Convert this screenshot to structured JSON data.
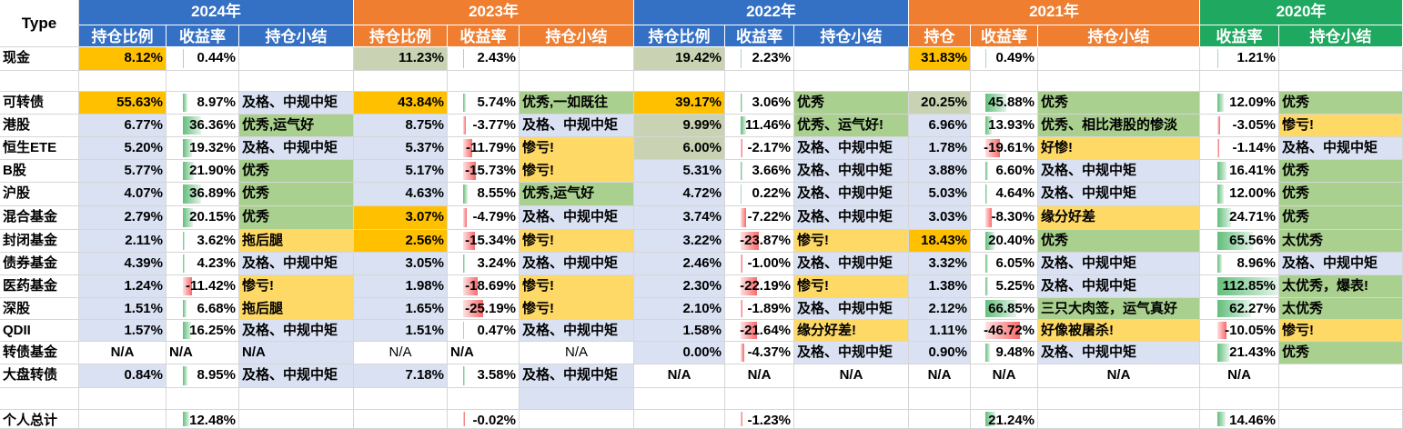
{
  "colors": {
    "blue": "#3471c4",
    "orange": "#ef7e31",
    "green": "#1fa85f",
    "amber": "#ffc000",
    "beige": "#c9d3b4",
    "bad": "#ffd966",
    "good": "#a9d08e",
    "ok": "#d9e1f2"
  },
  "type_label": "Type",
  "years": [
    {
      "label": "2024年",
      "color": "blue",
      "cols": [
        "持仓比例",
        "收益率",
        "持仓小结"
      ]
    },
    {
      "label": "2023年",
      "color": "orange",
      "cols": [
        "持仓比例",
        "收益率",
        "持仓小结"
      ]
    },
    {
      "label": "2022年",
      "color": "blue",
      "cols": [
        "持仓比例",
        "收益率",
        "持仓小结"
      ]
    },
    {
      "label": "2021年",
      "color": "orange",
      "cols": [
        "持仓",
        "收益率",
        "持仓小结"
      ]
    },
    {
      "label": "2020年",
      "color": "green",
      "cols": [
        "收益率",
        "持仓小结"
      ]
    }
  ],
  "rows": [
    {
      "name": "现金",
      "cells": [
        {
          "t": "8.12%",
          "bg": "amber"
        },
        {
          "t": "0.44%",
          "bar": 0.44
        },
        {
          "t": ""
        },
        {
          "t": "11.23%",
          "bg": "beige"
        },
        {
          "t": "2.43%",
          "bar": 2.43
        },
        {
          "t": ""
        },
        {
          "t": "19.42%",
          "bg": "beige"
        },
        {
          "t": "2.23%",
          "bar": 2.23
        },
        {
          "t": ""
        },
        {
          "t": "31.83%",
          "bg": "amber"
        },
        {
          "t": "0.49%",
          "bar": 0.49
        },
        {
          "t": ""
        },
        {
          "t": "1.21%",
          "bar": 1.21
        },
        {
          "t": ""
        }
      ]
    },
    {
      "name": "",
      "cells": []
    },
    {
      "name": "可转债",
      "cells": [
        {
          "t": "55.63%",
          "bg": "amber"
        },
        {
          "t": "8.97%",
          "bar": 8.97
        },
        {
          "t": "及格、中规中矩",
          "bg": "ok"
        },
        {
          "t": "43.84%",
          "bg": "amber"
        },
        {
          "t": "5.74%",
          "bar": 5.74
        },
        {
          "t": "优秀,一如既往",
          "bg": "good"
        },
        {
          "t": "39.17%",
          "bg": "amber"
        },
        {
          "t": "3.06%",
          "bar": 3.06
        },
        {
          "t": "优秀",
          "bg": "good"
        },
        {
          "t": "20.25%",
          "bg": "beige"
        },
        {
          "t": "45.88%",
          "bar": 45.88
        },
        {
          "t": "优秀",
          "bg": "good"
        },
        {
          "t": "12.09%",
          "bar": 12.09
        },
        {
          "t": "优秀",
          "bg": "good"
        }
      ]
    },
    {
      "name": "港股",
      "cells": [
        {
          "t": "6.77%",
          "bg": "ok"
        },
        {
          "t": "36.36%",
          "bar": 36.36
        },
        {
          "t": "优秀,运气好",
          "bg": "good"
        },
        {
          "t": "8.75%",
          "bg": "ok"
        },
        {
          "t": "-3.77%",
          "bar": -3.77
        },
        {
          "t": "及格、中规中矩",
          "bg": "ok"
        },
        {
          "t": "9.99%",
          "bg": "beige"
        },
        {
          "t": "11.46%",
          "bar": 11.46
        },
        {
          "t": "优秀、运气好!",
          "bg": "good"
        },
        {
          "t": "6.96%",
          "bg": "ok"
        },
        {
          "t": "13.93%",
          "bar": 13.93
        },
        {
          "t": "优秀、相比港股的惨淡",
          "bg": "good"
        },
        {
          "t": "-3.05%",
          "bar": -3.05
        },
        {
          "t": "惨亏!",
          "bg": "bad"
        }
      ]
    },
    {
      "name": "恒生ETE",
      "cells": [
        {
          "t": "5.20%",
          "bg": "ok"
        },
        {
          "t": "19.32%",
          "bar": 19.32
        },
        {
          "t": "及格、中规中矩",
          "bg": "ok"
        },
        {
          "t": "5.37%",
          "bg": "ok"
        },
        {
          "t": "-11.79%",
          "bar": -11.79
        },
        {
          "t": "惨亏!",
          "bg": "bad"
        },
        {
          "t": "6.00%",
          "bg": "beige"
        },
        {
          "t": "-2.17%",
          "bar": -2.17
        },
        {
          "t": "及格、中规中矩",
          "bg": "ok"
        },
        {
          "t": "1.78%",
          "bg": "ok"
        },
        {
          "t": "-19.61%",
          "bar": -19.61
        },
        {
          "t": "好惨!",
          "bg": "bad"
        },
        {
          "t": "-1.14%",
          "bar": -1.14
        },
        {
          "t": "及格、中规中矩",
          "bg": "ok"
        }
      ]
    },
    {
      "name": "B股",
      "cells": [
        {
          "t": "5.77%",
          "bg": "ok"
        },
        {
          "t": "21.90%",
          "bar": 21.9
        },
        {
          "t": "优秀",
          "bg": "good"
        },
        {
          "t": "5.17%",
          "bg": "ok"
        },
        {
          "t": "-15.73%",
          "bar": -15.73
        },
        {
          "t": "惨亏!",
          "bg": "bad"
        },
        {
          "t": "5.31%",
          "bg": "ok"
        },
        {
          "t": "3.66%",
          "bar": 3.66
        },
        {
          "t": "及格、中规中矩",
          "bg": "ok"
        },
        {
          "t": "3.88%",
          "bg": "ok"
        },
        {
          "t": "6.60%",
          "bar": 6.6
        },
        {
          "t": "及格、中规中矩",
          "bg": "ok"
        },
        {
          "t": "16.41%",
          "bar": 16.41
        },
        {
          "t": "优秀",
          "bg": "good"
        }
      ]
    },
    {
      "name": "沪股",
      "cells": [
        {
          "t": "4.07%",
          "bg": "ok"
        },
        {
          "t": "36.89%",
          "bar": 36.89
        },
        {
          "t": "优秀",
          "bg": "good"
        },
        {
          "t": "4.63%",
          "bg": "ok"
        },
        {
          "t": "8.55%",
          "bar": 8.55
        },
        {
          "t": "优秀,运气好",
          "bg": "good"
        },
        {
          "t": "4.72%",
          "bg": "ok"
        },
        {
          "t": "0.22%",
          "bar": 0.22
        },
        {
          "t": "及格、中规中矩",
          "bg": "ok"
        },
        {
          "t": "5.03%",
          "bg": "ok"
        },
        {
          "t": "4.64%",
          "bar": 4.64
        },
        {
          "t": "及格、中规中矩",
          "bg": "ok"
        },
        {
          "t": "12.00%",
          "bar": 12.0
        },
        {
          "t": "优秀",
          "bg": "good"
        }
      ]
    },
    {
      "name": "混合基金",
      "cells": [
        {
          "t": "2.79%",
          "bg": "ok"
        },
        {
          "t": "20.15%",
          "bar": 20.15
        },
        {
          "t": "优秀",
          "bg": "good"
        },
        {
          "t": "3.07%",
          "bg": "amber"
        },
        {
          "t": "-4.79%",
          "bar": -4.79
        },
        {
          "t": "及格、中规中矩",
          "bg": "ok"
        },
        {
          "t": "3.74%",
          "bg": "ok"
        },
        {
          "t": "-7.22%",
          "bar": -7.22
        },
        {
          "t": "及格、中规中矩",
          "bg": "ok"
        },
        {
          "t": "3.03%",
          "bg": "ok"
        },
        {
          "t": "-8.30%",
          "bar": -8.3
        },
        {
          "t": "缘分好差",
          "bg": "bad"
        },
        {
          "t": "24.71%",
          "bar": 24.71
        },
        {
          "t": "优秀",
          "bg": "good"
        }
      ]
    },
    {
      "name": "封闭基金",
      "cells": [
        {
          "t": "2.11%",
          "bg": "ok"
        },
        {
          "t": "3.62%",
          "bar": 3.62
        },
        {
          "t": "拖后腿",
          "bg": "bad"
        },
        {
          "t": "2.56%",
          "bg": "amber"
        },
        {
          "t": "-15.34%",
          "bar": -15.34
        },
        {
          "t": "惨亏!",
          "bg": "bad"
        },
        {
          "t": "3.22%",
          "bg": "ok"
        },
        {
          "t": "-23.87%",
          "bar": -23.87
        },
        {
          "t": "惨亏!",
          "bg": "bad"
        },
        {
          "t": "18.43%",
          "bg": "amber"
        },
        {
          "t": "20.40%",
          "bar": 20.4
        },
        {
          "t": "优秀",
          "bg": "good"
        },
        {
          "t": "65.56%",
          "bar": 65.56
        },
        {
          "t": "太优秀",
          "bg": "good"
        }
      ]
    },
    {
      "name": "债券基金",
      "cells": [
        {
          "t": "4.39%",
          "bg": "ok"
        },
        {
          "t": "4.23%",
          "bar": 4.23
        },
        {
          "t": "及格、中规中矩",
          "bg": "ok"
        },
        {
          "t": "3.05%",
          "bg": "ok"
        },
        {
          "t": "3.24%",
          "bar": 3.24
        },
        {
          "t": "及格、中规中矩",
          "bg": "ok"
        },
        {
          "t": "2.46%",
          "bg": "ok"
        },
        {
          "t": "-1.00%",
          "bar": -1.0
        },
        {
          "t": "及格、中规中矩",
          "bg": "ok"
        },
        {
          "t": "3.32%",
          "bg": "ok"
        },
        {
          "t": "6.05%",
          "bar": 6.05
        },
        {
          "t": "及格、中规中矩",
          "bg": "ok"
        },
        {
          "t": "8.96%",
          "bar": 8.96
        },
        {
          "t": "及格、中规中矩",
          "bg": "ok"
        }
      ]
    },
    {
      "name": "医药基金",
      "cells": [
        {
          "t": "1.24%",
          "bg": "ok"
        },
        {
          "t": "-11.42%",
          "bar": -11.42
        },
        {
          "t": "惨亏!",
          "bg": "bad"
        },
        {
          "t": "1.98%",
          "bg": "ok"
        },
        {
          "t": "-18.69%",
          "bar": -18.69
        },
        {
          "t": "惨亏!",
          "bg": "bad"
        },
        {
          "t": "2.30%",
          "bg": "ok"
        },
        {
          "t": "-22.19%",
          "bar": -22.19
        },
        {
          "t": "惨亏!",
          "bg": "bad"
        },
        {
          "t": "1.38%",
          "bg": "ok"
        },
        {
          "t": "5.25%",
          "bar": 5.25
        },
        {
          "t": "及格、中规中矩",
          "bg": "ok"
        },
        {
          "t": "112.85%",
          "bar": 112.85
        },
        {
          "t": "太优秀，爆表!",
          "bg": "good"
        }
      ]
    },
    {
      "name": "深股",
      "cells": [
        {
          "t": "1.51%",
          "bg": "ok"
        },
        {
          "t": "6.68%",
          "bar": 6.68
        },
        {
          "t": "拖后腿",
          "bg": "bad"
        },
        {
          "t": "1.65%",
          "bg": "ok"
        },
        {
          "t": "-25.19%",
          "bar": -25.19
        },
        {
          "t": "惨亏!",
          "bg": "bad"
        },
        {
          "t": "2.10%",
          "bg": "ok"
        },
        {
          "t": "-1.89%",
          "bar": -1.89
        },
        {
          "t": "及格、中规中矩",
          "bg": "ok"
        },
        {
          "t": "2.12%",
          "bg": "ok"
        },
        {
          "t": "66.85%",
          "bar": 66.85
        },
        {
          "t": "三只大肉签，运气真好",
          "bg": "good"
        },
        {
          "t": "62.27%",
          "bar": 62.27
        },
        {
          "t": "太优秀",
          "bg": "good"
        }
      ]
    },
    {
      "name": "QDII",
      "cells": [
        {
          "t": "1.57%",
          "bg": "ok"
        },
        {
          "t": "16.25%",
          "bar": 16.25
        },
        {
          "t": "及格、中规中矩",
          "bg": "ok"
        },
        {
          "t": "1.51%",
          "bg": "ok"
        },
        {
          "t": "0.47%",
          "bar": 0.47
        },
        {
          "t": "及格、中规中矩",
          "bg": "ok"
        },
        {
          "t": "1.58%",
          "bg": "ok"
        },
        {
          "t": "-21.64%",
          "bar": -21.64
        },
        {
          "t": "缘分好差!",
          "bg": "bad"
        },
        {
          "t": "1.11%",
          "bg": "ok"
        },
        {
          "t": "-46.72%",
          "bar": -46.72
        },
        {
          "t": "好像被屠杀!",
          "bg": "bad"
        },
        {
          "t": "-10.05%",
          "bar": -10.05
        },
        {
          "t": "惨亏!",
          "bg": "bad"
        }
      ]
    },
    {
      "name": "转债基金",
      "cells": [
        {
          "t": "N/A",
          "al": "center"
        },
        {
          "t": "N/A",
          "al": "left"
        },
        {
          "t": "N/A",
          "bg": "ok",
          "al": "left"
        },
        {
          "t": "N/A",
          "al": "center",
          "thin": true
        },
        {
          "t": "N/A",
          "al": "left"
        },
        {
          "t": "N/A",
          "al": "center",
          "thin": true
        },
        {
          "t": "0.00%",
          "bg": "ok"
        },
        {
          "t": "-4.37%",
          "bar": -4.37
        },
        {
          "t": "及格、中规中矩",
          "bg": "ok"
        },
        {
          "t": "0.90%",
          "bg": "ok"
        },
        {
          "t": "9.48%",
          "bar": 9.48
        },
        {
          "t": "及格、中规中矩",
          "bg": "ok"
        },
        {
          "t": "21.43%",
          "bar": 21.43
        },
        {
          "t": "优秀",
          "bg": "good"
        }
      ]
    },
    {
      "name": "大盘转债",
      "cells": [
        {
          "t": "0.84%",
          "bg": "ok"
        },
        {
          "t": "8.95%",
          "bar": 8.95
        },
        {
          "t": "及格、中规中矩",
          "bg": "ok"
        },
        {
          "t": "7.18%",
          "bg": "ok"
        },
        {
          "t": "3.58%",
          "bar": 3.58
        },
        {
          "t": "及格、中规中矩",
          "bg": "ok"
        },
        {
          "t": "N/A",
          "al": "center"
        },
        {
          "t": "N/A",
          "al": "center"
        },
        {
          "t": "N/A",
          "al": "center"
        },
        {
          "t": "N/A",
          "al": "center"
        },
        {
          "t": "N/A",
          "al": "center"
        },
        {
          "t": "N/A",
          "al": "center"
        },
        {
          "t": "N/A",
          "al": "center"
        },
        {
          "t": ""
        }
      ]
    },
    {
      "name": "",
      "cells": [
        {
          "t": ""
        },
        {
          "t": ""
        },
        {
          "t": ""
        },
        {
          "t": ""
        },
        {
          "t": ""
        },
        {
          "t": "",
          "bg": "ok"
        }
      ]
    },
    {
      "name": "个人总计",
      "cells": [
        {
          "t": ""
        },
        {
          "t": "12.48%",
          "bar": 12.48
        },
        {
          "t": ""
        },
        {
          "t": ""
        },
        {
          "t": "-0.02%",
          "bar": -0.02
        },
        {
          "t": ""
        },
        {
          "t": ""
        },
        {
          "t": "-1.23%",
          "bar": -1.23
        },
        {
          "t": ""
        },
        {
          "t": ""
        },
        {
          "t": "21.24%",
          "bar": 21.24
        },
        {
          "t": ""
        },
        {
          "t": "14.46%",
          "bar": 14.46
        },
        {
          "t": ""
        }
      ]
    }
  ]
}
